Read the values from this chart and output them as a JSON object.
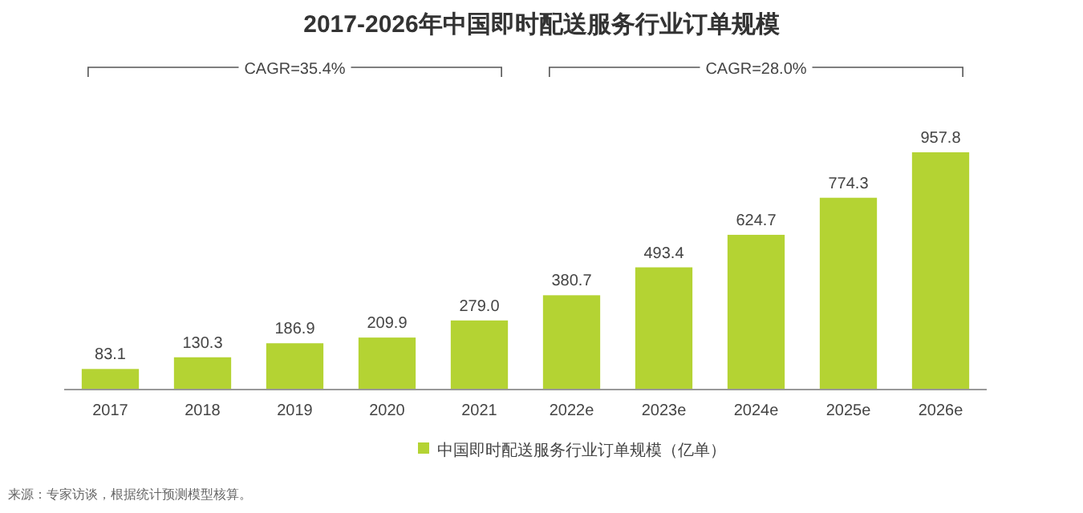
{
  "chart_data": {
    "type": "bar",
    "title": "2017-2026年中国即时配送服务行业订单规模",
    "categories": [
      "2017",
      "2018",
      "2019",
      "2020",
      "2021",
      "2022e",
      "2023e",
      "2024e",
      "2025e",
      "2026e"
    ],
    "series": [
      {
        "name": "中国即时配送服务行业订单规模（亿单）",
        "color": "#b4d333",
        "values": [
          83.1,
          130.3,
          186.9,
          209.9,
          279.0,
          380.7,
          493.4,
          624.7,
          774.3,
          957.8
        ],
        "value_labels": [
          "83.1",
          "130.3",
          "186.9",
          "209.9",
          "279.0",
          "380.7",
          "493.4",
          "624.7",
          "774.3",
          "957.8"
        ]
      }
    ],
    "annotations": [
      "CAGR=35.4%",
      "CAGR=28.0%",
      "来源：专家访谈，根据统计预测模型核算。"
    ],
    "legend": "bottom"
  }
}
